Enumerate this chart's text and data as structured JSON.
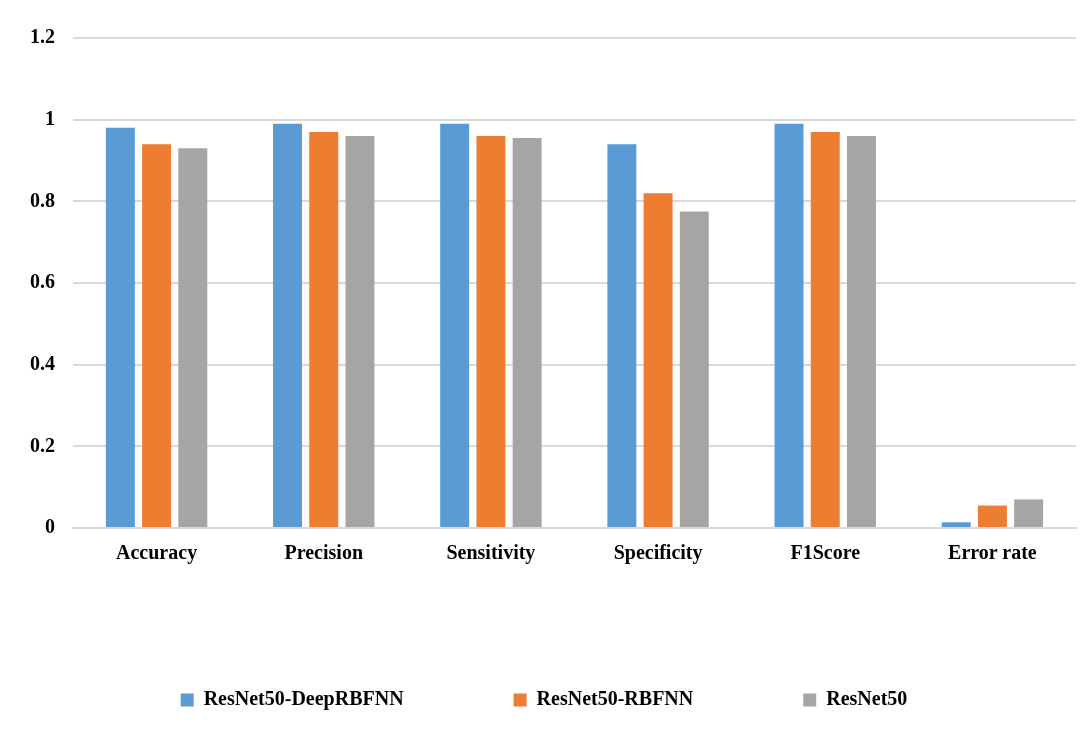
{
  "chart_data": {
    "type": "bar",
    "categories": [
      "Accuracy",
      "Precision",
      "Sensitivity",
      "Specificity",
      "F1Score",
      "Error rate"
    ],
    "series": [
      {
        "name": "ResNet50-DeepRBFNN",
        "color": "#5b9bd5",
        "values": [
          0.98,
          0.99,
          0.99,
          0.94,
          0.99,
          0.014
        ]
      },
      {
        "name": "ResNet50-RBFNN",
        "color": "#ed7d31",
        "values": [
          0.94,
          0.97,
          0.96,
          0.82,
          0.97,
          0.055
        ]
      },
      {
        "name": "ResNet50",
        "color": "#a5a5a5",
        "values": [
          0.93,
          0.96,
          0.955,
          0.775,
          0.96,
          0.07
        ]
      }
    ],
    "ylim": [
      0,
      1.2
    ],
    "yticks": [
      0,
      0.2,
      0.4,
      0.6,
      0.8,
      1,
      1.2
    ],
    "grid": "y",
    "legend": "bottom"
  }
}
